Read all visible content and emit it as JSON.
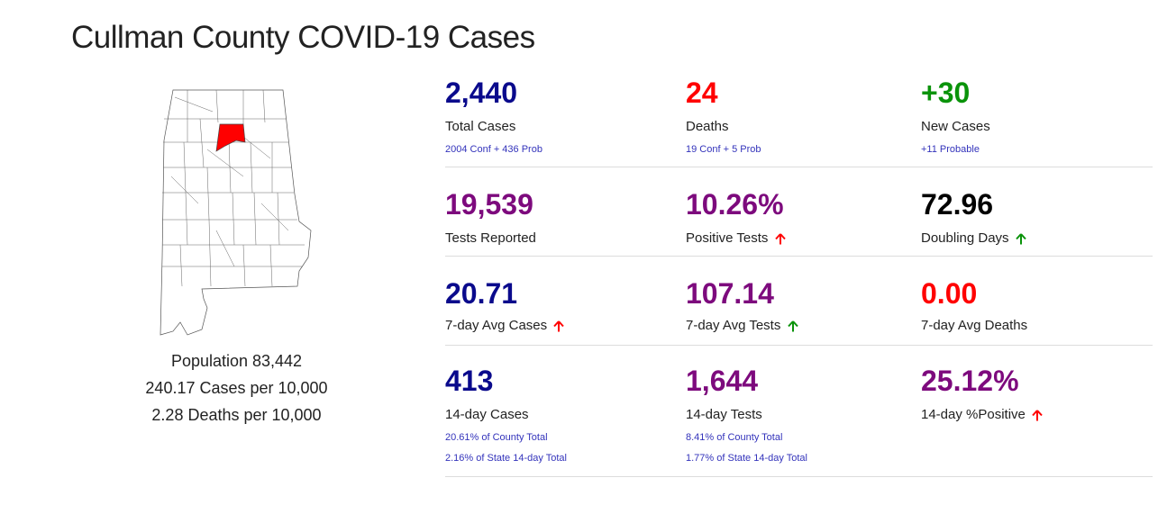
{
  "title": "Cullman County COVID-19 Cases",
  "map": {
    "icon": "alabama-county-map-icon",
    "highlight_color": "#ff0000"
  },
  "population": {
    "line1": "Population 83,442",
    "line2": "240.17 Cases per 10,000",
    "line3": "2.28 Deaths per 10,000"
  },
  "colors": {
    "navy": "#0a0a8c",
    "red": "#ff0000",
    "green": "#0a930a",
    "purple": "#7d0a7d",
    "black": "#000000",
    "link": "#3333bb"
  },
  "stats": {
    "total_cases": {
      "value": "2,440",
      "label": "Total Cases",
      "sub": "2004 Conf + 436 Prob"
    },
    "deaths": {
      "value": "24",
      "label": "Deaths",
      "sub": "19 Conf + 5 Prob"
    },
    "new_cases": {
      "value": "+30",
      "label": "New Cases",
      "sub": "+11 Probable"
    },
    "tests_reported": {
      "value": "19,539",
      "label": "Tests Reported"
    },
    "positive_tests": {
      "value": "10.26%",
      "label": "Positive Tests",
      "arrow": "up-red"
    },
    "doubling_days": {
      "value": "72.96",
      "label": "Doubling Days",
      "arrow": "up-green"
    },
    "avg7_cases": {
      "value": "20.71",
      "label": "7-day Avg Cases",
      "arrow": "up-red"
    },
    "avg7_tests": {
      "value": "107.14",
      "label": "7-day Avg Tests",
      "arrow": "up-green"
    },
    "avg7_deaths": {
      "value": "0.00",
      "label": "7-day Avg Deaths"
    },
    "cases14": {
      "value": "413",
      "label": "14-day Cases",
      "sub1": "20.61% of County Total",
      "sub2": "2.16% of State 14-day Total"
    },
    "tests14": {
      "value": "1,644",
      "label": "14-day Tests",
      "sub1": "8.41% of County Total",
      "sub2": "1.77% of State 14-day Total"
    },
    "positive14": {
      "value": "25.12%",
      "label": "14-day %Positive",
      "arrow": "up-red"
    }
  }
}
